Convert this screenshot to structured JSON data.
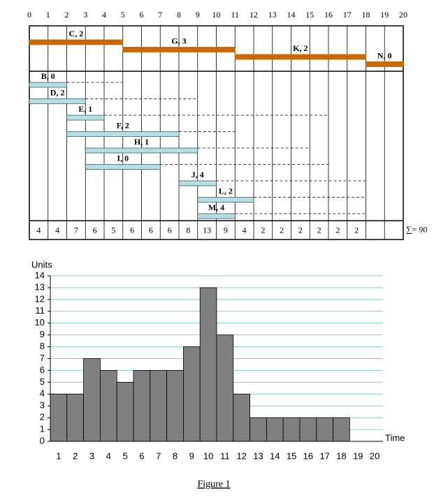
{
  "chart_data": [
    {
      "type": "gantt",
      "xlim": [
        0,
        20
      ],
      "xticks": [
        0,
        1,
        2,
        3,
        4,
        5,
        6,
        7,
        8,
        9,
        10,
        11,
        12,
        13,
        14,
        15,
        16,
        17,
        18,
        19,
        20
      ],
      "critical_color": "#cc6600",
      "task_color": "#b3e0e6",
      "tasks": [
        {
          "label": "C, 2",
          "start": 0,
          "end": 5,
          "critical": true
        },
        {
          "label": "G, 3",
          "start": 5,
          "end": 11,
          "critical": true
        },
        {
          "label": "K, 2",
          "start": 11,
          "end": 18,
          "critical": true
        },
        {
          "label": "N, 0",
          "start": 18,
          "end": 20,
          "critical": true
        },
        {
          "label": "B, 0",
          "start": 0,
          "end": 2,
          "float_end": 5,
          "critical": false
        },
        {
          "label": "D, 2",
          "start": 0,
          "end": 3,
          "float_end": 9,
          "critical": false
        },
        {
          "label": "E, 1",
          "start": 2,
          "end": 4,
          "float_end": 16,
          "critical": false
        },
        {
          "label": "F, 2",
          "start": 2,
          "end": 8,
          "float_end": 11,
          "critical": false
        },
        {
          "label": "H, 1",
          "start": 3,
          "end": 9,
          "float_end": 15,
          "critical": false
        },
        {
          "label": "I, 0",
          "start": 3,
          "end": 7,
          "float_end": 16,
          "critical": false
        },
        {
          "label": "J, 4",
          "start": 8,
          "end": 10,
          "float_end": 18,
          "critical": false
        },
        {
          "label": "L, 2",
          "start": 9,
          "end": 12,
          "float_end": 18,
          "critical": false
        },
        {
          "label": "M, 4",
          "start": 9,
          "end": 11,
          "float_end": 18,
          "critical": false
        }
      ],
      "resources": [
        4,
        4,
        7,
        6,
        5,
        6,
        6,
        6,
        8,
        13,
        9,
        4,
        2,
        2,
        2,
        2,
        2,
        2
      ],
      "total_label": "∑= 90"
    },
    {
      "type": "bar",
      "y_label": "Units",
      "x_label": "Time",
      "categories": [
        "1",
        "2",
        "3",
        "4",
        "5",
        "6",
        "7",
        "8",
        "9",
        "10",
        "11",
        "12",
        "13",
        "14",
        "15",
        "16",
        "17",
        "18",
        "19",
        "20"
      ],
      "values": [
        4,
        4,
        7,
        6,
        5,
        6,
        6,
        6,
        8,
        13,
        9,
        4,
        2,
        2,
        2,
        2,
        2,
        2,
        0,
        0
      ],
      "color": "#808080",
      "ylim": [
        0,
        14
      ],
      "yticks": [
        0,
        1,
        2,
        3,
        4,
        5,
        6,
        7,
        8,
        9,
        10,
        11,
        12,
        13,
        14
      ],
      "grid": true,
      "grid_color": "#80d0d0"
    }
  ],
  "caption": "Figure 1"
}
